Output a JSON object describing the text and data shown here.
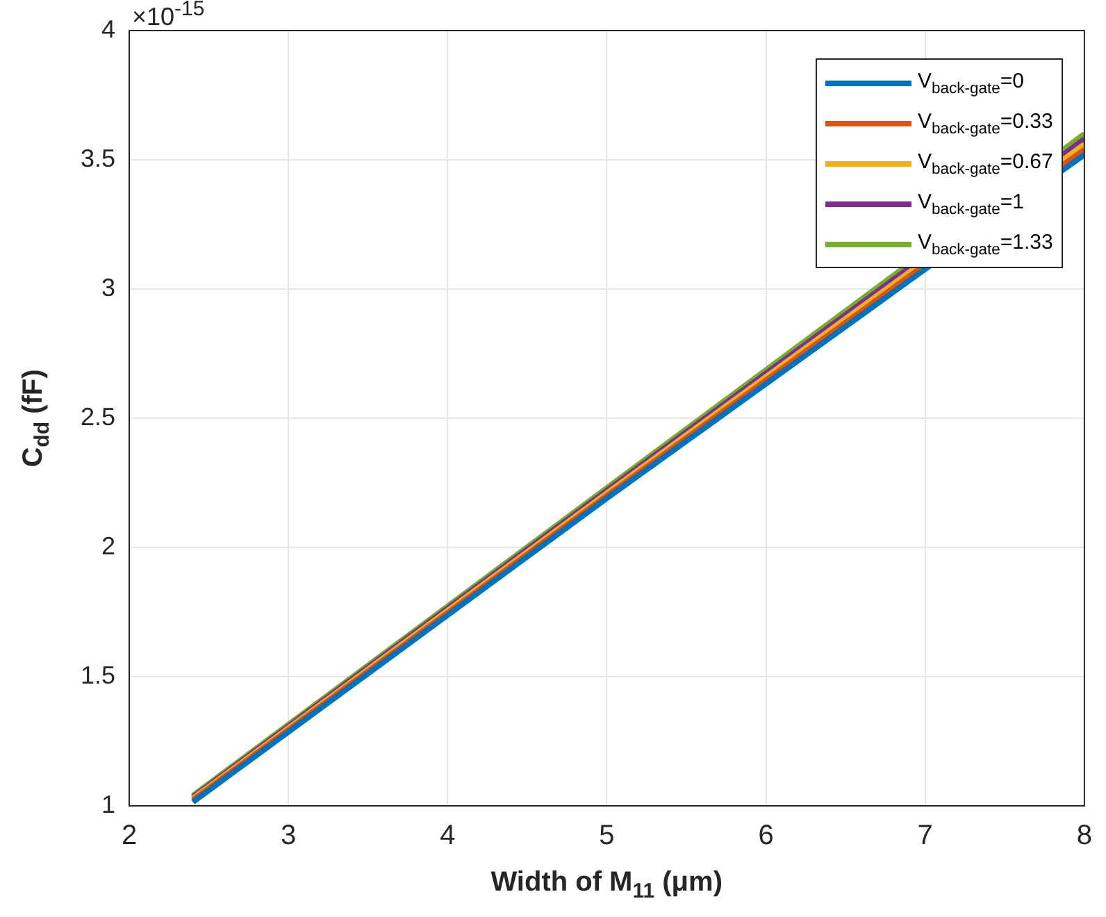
{
  "chart_data": {
    "type": "line",
    "xlabel": "Width of M$_{11}$ (μm)",
    "ylabel": "C$_{dd}$ (fF)",
    "annotations": [
      "×10$^{-15}$"
    ],
    "x": [
      2.4,
      5,
      8
    ],
    "series": [
      {
        "name": "V$_{back-gate}$=0",
        "color": "#0072bd",
        "values": [
          1.015,
          2.19,
          3.52
        ]
      },
      {
        "name": "V$_{back-gate}$=0.33",
        "color": "#d95319",
        "values": [
          1.022,
          2.2,
          3.54
        ]
      },
      {
        "name": "V$_{back-gate}$=0.67",
        "color": "#edb120",
        "values": [
          1.028,
          2.21,
          3.56
        ]
      },
      {
        "name": "V$_{back-gate}$=1",
        "color": "#7e2f8e",
        "values": [
          1.034,
          2.22,
          3.58
        ]
      },
      {
        "name": "V$_{back-gate}$=1.33",
        "color": "#77ac30",
        "values": [
          1.04,
          2.23,
          3.6
        ]
      }
    ],
    "xlim": [
      2,
      8
    ],
    "xticks": [
      2,
      3,
      4,
      5,
      6,
      7,
      8
    ],
    "ylim": [
      1,
      4
    ],
    "yticks": [
      1,
      1.5,
      2,
      2.5,
      3,
      3.5,
      4
    ],
    "grid": true,
    "legend": "top right",
    "marker": "none",
    "line_style": "solid"
  }
}
